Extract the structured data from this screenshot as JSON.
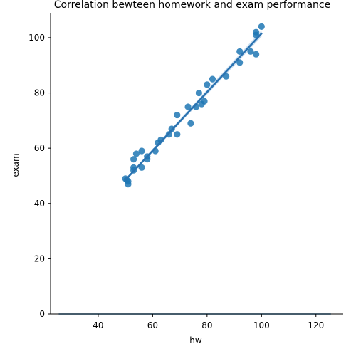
{
  "chart_data": {
    "type": "scatter",
    "title": "Correlation bewteen homework and exam performance",
    "xlabel": "hw",
    "ylabel": "exam",
    "xlim": [
      22.5,
      130
    ],
    "ylim": [
      0,
      109
    ],
    "xticks": [
      40,
      60,
      80,
      100,
      120
    ],
    "yticks": [
      0,
      20,
      40,
      60,
      80,
      100
    ],
    "grid": false,
    "series": [
      {
        "points": [
          [
            50,
            49
          ],
          [
            50.5,
            48.5
          ],
          [
            51,
            47
          ],
          [
            51,
            48
          ],
          [
            53,
            52
          ],
          [
            53,
            53
          ],
          [
            53,
            56
          ],
          [
            54,
            58
          ],
          [
            56,
            53
          ],
          [
            56,
            59
          ],
          [
            58,
            56
          ],
          [
            58,
            57
          ],
          [
            61,
            59
          ],
          [
            62,
            62
          ],
          [
            63,
            63
          ],
          [
            66,
            65
          ],
          [
            67,
            67
          ],
          [
            69,
            65
          ],
          [
            69,
            72
          ],
          [
            73,
            75
          ],
          [
            74,
            69
          ],
          [
            76,
            75
          ],
          [
            77,
            80
          ],
          [
            78,
            76
          ],
          [
            79,
            77
          ],
          [
            80,
            83
          ],
          [
            82,
            85
          ],
          [
            87,
            86
          ],
          [
            92,
            95
          ],
          [
            92,
            91
          ],
          [
            96,
            95
          ],
          [
            98,
            94
          ],
          [
            98,
            101
          ],
          [
            98,
            102
          ],
          [
            100,
            104
          ]
        ]
      }
    ],
    "regression": {
      "x_range": [
        50,
        100
      ],
      "y_at_start": 48.5,
      "y_at_end": 101.5
    },
    "baseline": {
      "x_range": [
        25.5,
        125.5
      ],
      "y": 0
    },
    "colors": {
      "point": "#1f77b4",
      "line": "#2a72b0",
      "ci": "#a6c8e6",
      "axis": "#000000"
    }
  }
}
